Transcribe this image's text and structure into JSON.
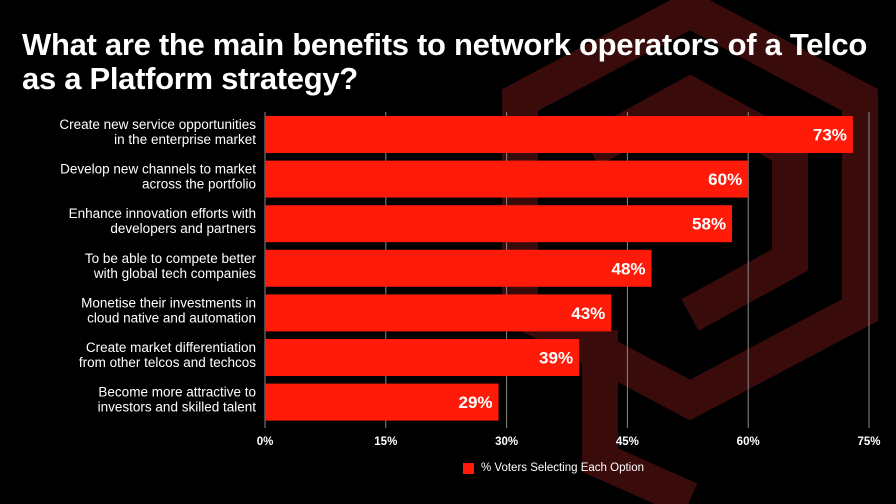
{
  "title": "What are the main benefits to network operators of a Telco as a Platform strategy?",
  "colors": {
    "bar": "#ff1a0a",
    "background": "#000000",
    "watermark": "#3a0b0b",
    "gridline": "#8a8a8a"
  },
  "chart_data": {
    "type": "bar",
    "orientation": "horizontal",
    "categories": [
      [
        "Create new service opportunities",
        "in the enterprise market"
      ],
      [
        "Develop new channels to market",
        "across the portfolio"
      ],
      [
        "Enhance innovation efforts with",
        "developers and partners"
      ],
      [
        "To be able to compete better",
        "with global tech companies"
      ],
      [
        "Monetise their investments in",
        "cloud native and automation"
      ],
      [
        "Create market differentiation",
        "from other telcos and techcos"
      ],
      [
        "Become more attractive to",
        "investors and skilled talent"
      ]
    ],
    "values": [
      73,
      60,
      58,
      48,
      43,
      39,
      29
    ],
    "value_labels": [
      "73%",
      "60%",
      "58%",
      "48%",
      "43%",
      "39%",
      "29%"
    ],
    "xlim": [
      0,
      75
    ],
    "xticks": [
      0,
      15,
      30,
      45,
      60,
      75
    ],
    "xtick_labels": [
      "0%",
      "15%",
      "30%",
      "45%",
      "60%",
      "75%"
    ],
    "grid": "vertical",
    "legend": {
      "label": "% Voters Selecting Each Option",
      "placement": "bottom"
    }
  }
}
